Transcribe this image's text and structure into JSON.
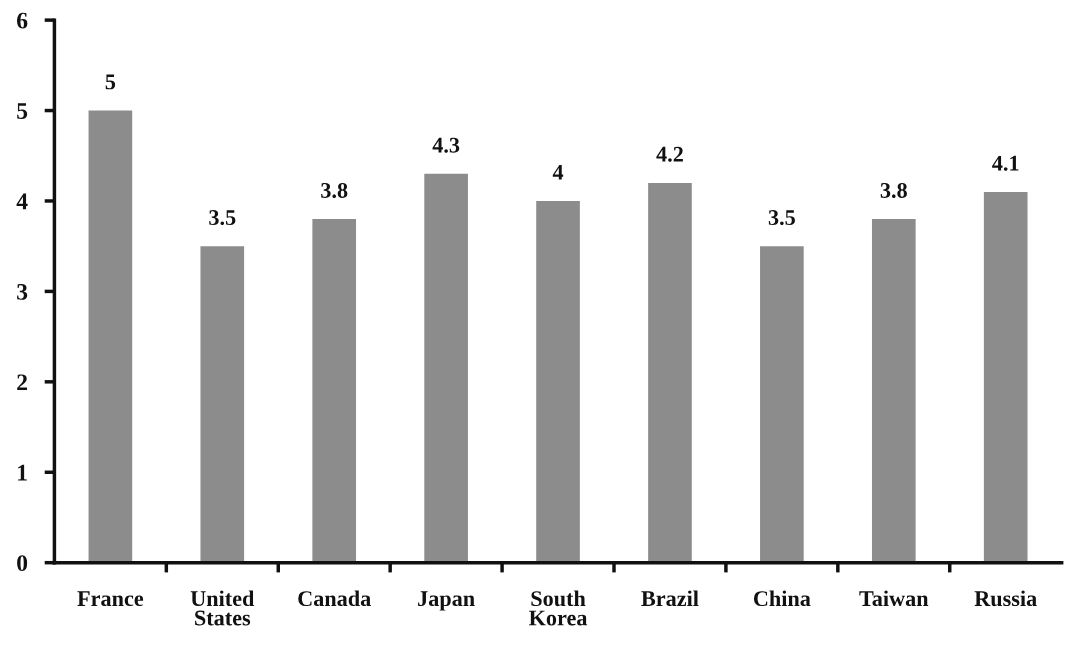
{
  "chart_data": {
    "type": "bar",
    "categories": [
      "France",
      "United\nStates",
      "Canada",
      "Japan",
      "South\nKorea",
      "Brazil",
      "China",
      "Taiwan",
      "Russia"
    ],
    "values": [
      5,
      3.5,
      3.8,
      4.3,
      4,
      4.2,
      3.5,
      3.8,
      4.1
    ],
    "color": "#8c8c8c",
    "ylim": [
      0,
      6
    ],
    "yticks": [
      0,
      1,
      2,
      3,
      4,
      5,
      6
    ],
    "data_labels": true,
    "grid": false,
    "legend": false
  }
}
